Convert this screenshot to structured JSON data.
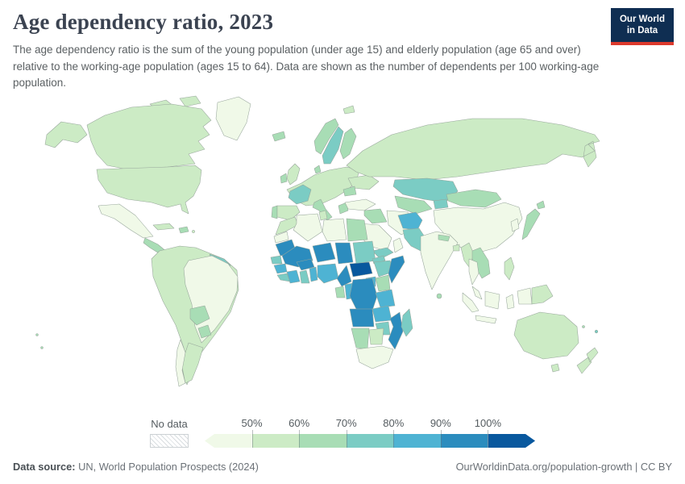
{
  "header": {
    "title": "Age dependency ratio, 2023",
    "subtitle": "The age dependency ratio is the sum of the young population (under age 15) and elderly population (age 65 and over) relative to the working-age population (ages 15 to 64). Data are shown as the number of dependents per 100 working-age population.",
    "logo_line1": "Our World",
    "logo_line2": "in Data",
    "logo_bg_color": "#0f2e52",
    "logo_stripe_color": "#dc392c"
  },
  "legend": {
    "no_data_label": "No data",
    "tick_labels": [
      "50%",
      "60%",
      "70%",
      "80%",
      "90%",
      "100%"
    ]
  },
  "footer": {
    "source_label": "Data source:",
    "source_text": "UN, World Population Prospects (2024)",
    "right_text": "OurWorldinData.org/population-growth | CC BY"
  },
  "chart_data": {
    "type": "heatmap",
    "subtype": "choropleth-world-map",
    "title": "Age dependency ratio, 2023",
    "unit": "dependents per 100 working-age population",
    "legend_position": "bottom",
    "bins": [
      {
        "label": "<50%",
        "color": "#f0f9e8"
      },
      {
        "label": "50-60%",
        "color": "#ccebc5"
      },
      {
        "label": "60-70%",
        "color": "#a8ddb5"
      },
      {
        "label": "70-80%",
        "color": "#7bccc4"
      },
      {
        "label": "80-90%",
        "color": "#4eb3d3"
      },
      {
        "label": "90-100%",
        "color": "#2b8cbe"
      },
      {
        "label": ">100%",
        "color": "#08589e"
      }
    ],
    "regions": {
      "greenland": "<50%",
      "canada": "50-60%",
      "alaska": "50-60%",
      "canadian-arctic-islands": "50-60%",
      "united-states": "50-60%",
      "mexico": "<50%",
      "central-america": "60-70%",
      "cuba": "50-60%",
      "hispaniola": "60-70%",
      "puerto-rico": "50-60%",
      "andean-south-america": "50-60%",
      "brazil": "<50%",
      "bolivia": "60-70%",
      "paraguay": "60-70%",
      "argentina": "50-60%",
      "chile": "<50%",
      "guyanas": "70-80%",
      "iceland": "60-70%",
      "united-kingdom": "50-60%",
      "ireland": "60-70%",
      "norway": "60-70%",
      "sweden": "70-80%",
      "finland": "60-70%",
      "denmark": "60-70%",
      "western-europe": "50-60%",
      "france": "70-80%",
      "spain": "50-60%",
      "portugal": "60-70%",
      "italy": "60-70%",
      "greece": "60-70%",
      "romania": "60-70%",
      "ukraine": "50-60%",
      "svalbard": "50-60%",
      "russia": "50-60%",
      "kazakhstan": "70-80%",
      "uzbekistan-turkmenistan": "60-70%",
      "kyrgyzstan-tajikistan": "70-80%",
      "mongolia": "60-70%",
      "china": "<50%",
      "korea": "<50%",
      "japan": "60-70%",
      "turkey": "<50%",
      "syria-iraq": "60-70%",
      "iran": "<50%",
      "saudi-arabia": "<50%",
      "yemen": "70-80%",
      "oman": "<50%",
      "afghanistan": "80-90%",
      "pakistan": "70-80%",
      "india": "<50%",
      "nepal": "60-70%",
      "bangladesh": "50-60%",
      "sri-lanka": "60-70%",
      "myanmar": "50-60%",
      "indochina": "60-70%",
      "thailand": "<50%",
      "malaysia": "<50%",
      "indonesia": "<50%",
      "philippines": "50-60%",
      "papua-new-guinea": "50-60%",
      "morocco": "50-60%",
      "western-sahara": "<50%",
      "algeria": "<50%",
      "tunisia": "50-60%",
      "libya": "<50%",
      "egypt": "60-70%",
      "mauritania": "90-100%",
      "mali": "90-100%",
      "niger": "90-100%",
      "chad": "90-100%",
      "sudan": "70-80%",
      "eritrea": "70-80%",
      "senegal": "70-80%",
      "guinea": "80-90%",
      "sierra-leone-liberia": "70-80%",
      "ivory-coast": "80-90%",
      "ghana": "70-80%",
      "togo-benin": "80-90%",
      "burkina-faso": "90-100%",
      "nigeria": "80-90%",
      "cameroon": "90-100%",
      "central-african-republic": ">100%",
      "ethiopia": "70-80%",
      "somalia": "90-100%",
      "kenya": "60-70%",
      "uganda": "80-90%",
      "gabon": "60-70%",
      "congo": "80-90%",
      "dr-congo": "90-100%",
      "tanzania": "80-90%",
      "angola": "90-100%",
      "zambia": "80-90%",
      "mozambique": "90-100%",
      "zimbabwe": "70-80%",
      "namibia": "60-70%",
      "botswana": "50-60%",
      "south-africa": "<50%",
      "madagascar": "70-80%",
      "australia": "50-60%",
      "new-zealand": "50-60%",
      "fiji": "70-80%",
      "new-caledonia": "60-70%",
      "pacific-islands": "60-70%"
    }
  }
}
